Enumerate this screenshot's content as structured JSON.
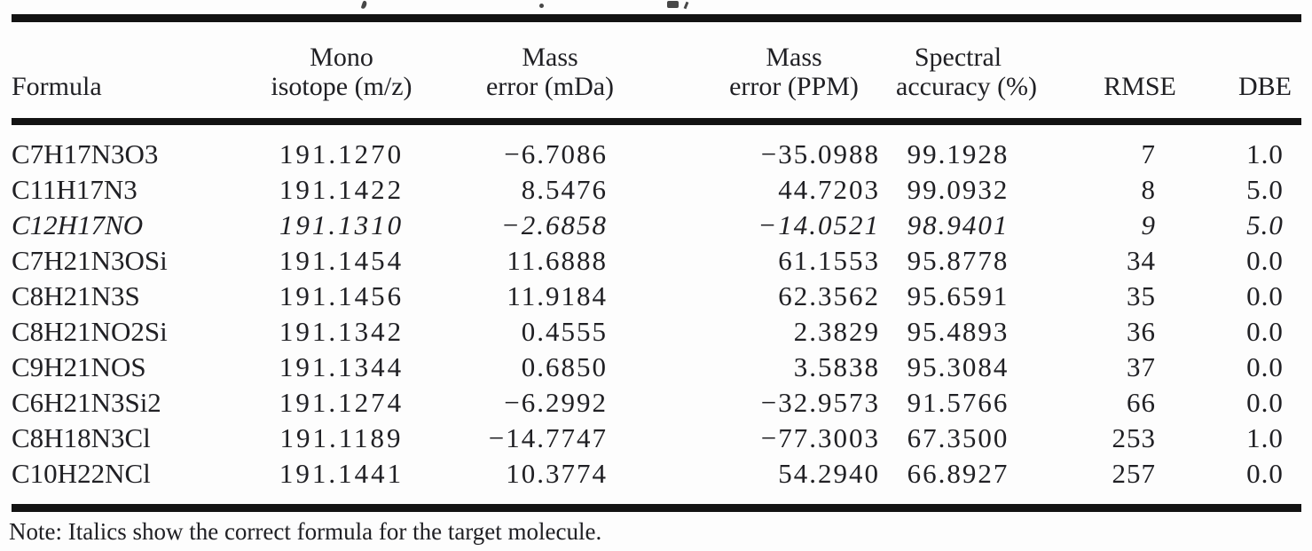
{
  "page": {
    "background": "#fdfdfd",
    "text_color": "#202024",
    "rule_color": "#131313"
  },
  "table": {
    "columns": [
      {
        "id": "formula",
        "label_lines": [
          "",
          "Formula"
        ]
      },
      {
        "id": "mono",
        "label_lines": [
          "Mono",
          "isotope (m/z)"
        ]
      },
      {
        "id": "mda",
        "label_lines": [
          "Mass",
          "error (mDa)"
        ]
      },
      {
        "id": "ppm",
        "label_lines": [
          "Mass",
          "error (PPM)"
        ]
      },
      {
        "id": "acc",
        "label_lines": [
          "Spectral",
          "accuracy (%)"
        ]
      },
      {
        "id": "rmse",
        "label_lines": [
          "",
          "RMSE"
        ]
      },
      {
        "id": "dbe",
        "label_lines": [
          "",
          "DBE"
        ]
      }
    ],
    "rows": [
      {
        "formula": "C7H17N3O3",
        "mono": "191.1270",
        "mda": "−6.7086",
        "ppm": "−35.0988",
        "acc": "99.1928",
        "rmse": "7",
        "dbe": "1.0",
        "italic": false
      },
      {
        "formula": "C11H17N3",
        "mono": "191.1422",
        "mda": "8.5476",
        "ppm": "44.7203",
        "acc": "99.0932",
        "rmse": "8",
        "dbe": "5.0",
        "italic": false
      },
      {
        "formula": "C12H17NO",
        "mono": "191.1310",
        "mda": "−2.6858",
        "ppm": "−14.0521",
        "acc": "98.9401",
        "rmse": "9",
        "dbe": "5.0",
        "italic": true
      },
      {
        "formula": "C7H21N3OSi",
        "mono": "191.1454",
        "mda": "11.6888",
        "ppm": "61.1553",
        "acc": "95.8778",
        "rmse": "34",
        "dbe": "0.0",
        "italic": false
      },
      {
        "formula": "C8H21N3S",
        "mono": "191.1456",
        "mda": "11.9184",
        "ppm": "62.3562",
        "acc": "95.6591",
        "rmse": "35",
        "dbe": "0.0",
        "italic": false
      },
      {
        "formula": "C8H21NO2Si",
        "mono": "191.1342",
        "mda": "0.4555",
        "ppm": "2.3829",
        "acc": "95.4893",
        "rmse": "36",
        "dbe": "0.0",
        "italic": false
      },
      {
        "formula": "C9H21NOS",
        "mono": "191.1344",
        "mda": "0.6850",
        "ppm": "3.5838",
        "acc": "95.3084",
        "rmse": "37",
        "dbe": "0.0",
        "italic": false
      },
      {
        "formula": "C6H21N3Si2",
        "mono": "191.1274",
        "mda": "−6.2992",
        "ppm": "−32.9573",
        "acc": "91.5766",
        "rmse": "66",
        "dbe": "0.0",
        "italic": false
      },
      {
        "formula": "C8H18N3Cl",
        "mono": "191.1189",
        "mda": "−14.7747",
        "ppm": "−77.3003",
        "acc": "67.3500",
        "rmse": "253",
        "dbe": "1.0",
        "italic": false
      },
      {
        "formula": "C10H22NCl",
        "mono": "191.1441",
        "mda": "10.3774",
        "ppm": "54.2940",
        "acc": "66.8927",
        "rmse": "257",
        "dbe": "0.0",
        "italic": false
      }
    ],
    "note": "Note: Italics show the correct formula for the target molecule."
  }
}
